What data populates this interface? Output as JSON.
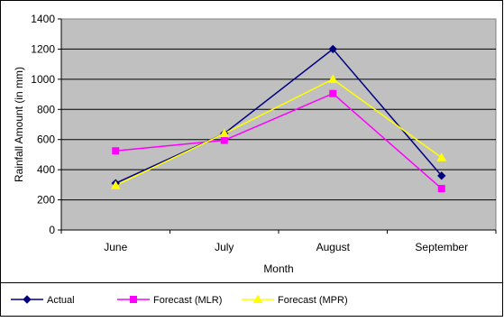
{
  "chart_data": {
    "type": "line",
    "title": "",
    "xlabel": "Month",
    "ylabel": "Rainfall Amount (in mm)",
    "categories": [
      "June",
      "July",
      "August",
      "September"
    ],
    "ylim": [
      0,
      1400
    ],
    "yticks": [
      "0",
      "200",
      "400",
      "600",
      "800",
      "1000",
      "1200",
      "1400"
    ],
    "grid": "horizontal",
    "legend_position": "bottom",
    "plot_background": "#c0c0c0",
    "series": [
      {
        "name": "Actual",
        "values": [
          310,
          640,
          1200,
          360
        ],
        "color": "#000080",
        "marker": "diamond"
      },
      {
        "name": "Forecast (MLR)",
        "values": [
          525,
          595,
          905,
          275
        ],
        "color": "#ff00ff",
        "marker": "square"
      },
      {
        "name": "Forecast (MPR)",
        "values": [
          295,
          640,
          1000,
          480
        ],
        "color": "#ffff00",
        "marker": "triangle"
      }
    ]
  }
}
